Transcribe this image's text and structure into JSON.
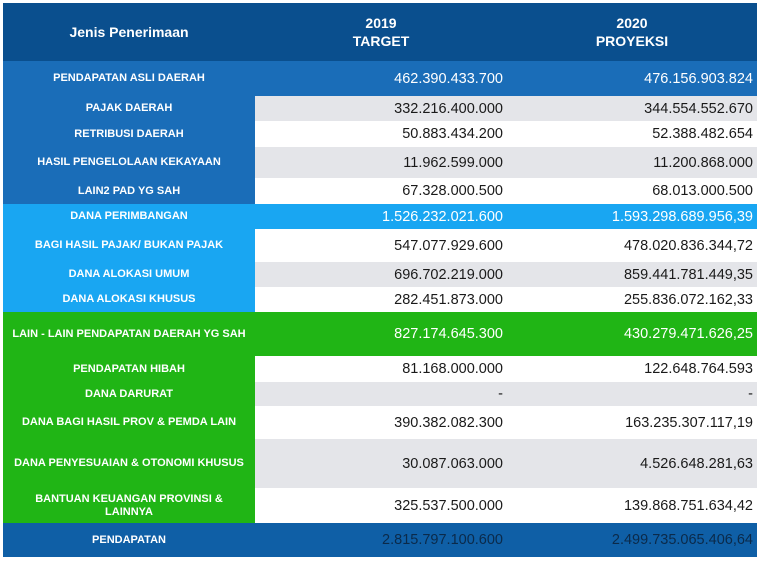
{
  "header": {
    "col1": "Jenis Penerimaan",
    "col2_year": "2019",
    "col2_label": "TARGET",
    "col3_year": "2020",
    "col3_label": "PROYEKSI"
  },
  "rows": [
    {
      "label": "PENDAPATAN ASLI DAERAH",
      "target": "462.390.433.700",
      "proyeksi": "476.156.903.824"
    },
    {
      "label": "PAJAK DAERAH",
      "target": "332.216.400.000",
      "proyeksi": "344.554.552.670"
    },
    {
      "label": "RETRIBUSI DAERAH",
      "target": "50.883.434.200",
      "proyeksi": "52.388.482.654"
    },
    {
      "label": "HASIL PENGELOLAAN KEKAYAAN",
      "target": "11.962.599.000",
      "proyeksi": "11.200.868.000"
    },
    {
      "label": "LAIN2 PAD YG SAH",
      "target": "67.328.000.500",
      "proyeksi": "68.013.000.500"
    },
    {
      "label": "DANA PERIMBANGAN",
      "target": "1.526.232.021.600",
      "proyeksi": "1.593.298.689.956,39"
    },
    {
      "label": "BAGI HASIL PAJAK/ BUKAN PAJAK",
      "target": "547.077.929.600",
      "proyeksi": "478.020.836.344,72"
    },
    {
      "label": "DANA ALOKASI UMUM",
      "target": "696.702.219.000",
      "proyeksi": "859.441.781.449,35"
    },
    {
      "label": "DANA ALOKASI KHUSUS",
      "target": "282.451.873.000",
      "proyeksi": "255.836.072.162,33"
    },
    {
      "label": "LAIN - LAIN PENDAPATAN DAERAH YG SAH",
      "target": "827.174.645.300",
      "proyeksi": "430.279.471.626,25"
    },
    {
      "label": "PENDAPATAN HIBAH",
      "target": "81.168.000.000",
      "proyeksi": "122.648.764.593"
    },
    {
      "label": "DANA DARURAT",
      "target": "-",
      "proyeksi": "-"
    },
    {
      "label": "DANA BAGI HASIL PROV & PEMDA LAIN",
      "target": "390.382.082.300",
      "proyeksi": "163.235.307.117,19"
    },
    {
      "label": "DANA PENYESUAIAN & OTONOMI KHUSUS",
      "target": "30.087.063.000",
      "proyeksi": "4.526.648.281,63"
    },
    {
      "label": "BANTUAN KEUANGAN PROVINSI & LAINNYA",
      "target": "325.537.500.000",
      "proyeksi": "139.868.751.634,42"
    },
    {
      "label": "PENDAPATAN",
      "target": "2.815.797.100.600",
      "proyeksi": "2.499.735.065.406,64"
    }
  ],
  "colors": {
    "header": "#0a4f8e",
    "group_blue": "#1a6db8",
    "group_light_blue": "#19a6f2",
    "group_green": "#20b515",
    "stripe": "#e4e5e9",
    "footer": "#0f5fa6"
  }
}
